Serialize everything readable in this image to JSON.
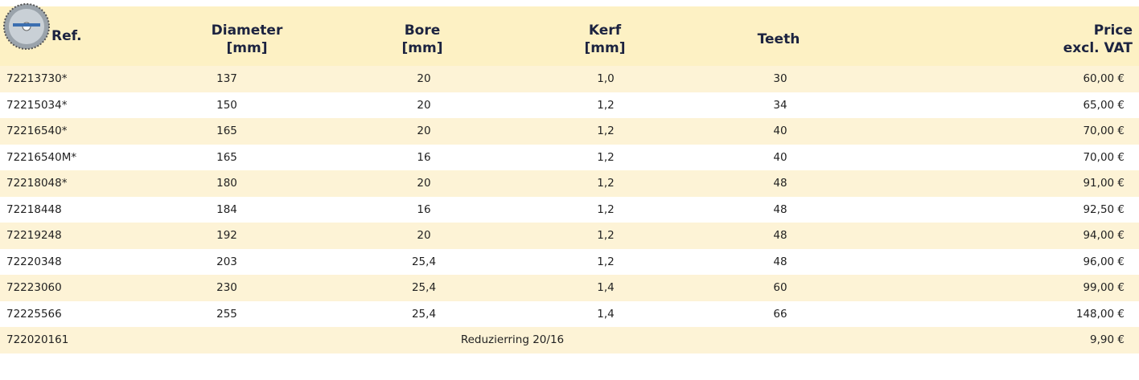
{
  "table": {
    "columns": [
      [
        "Ref."
      ],
      [
        "Diameter",
        "[mm]"
      ],
      [
        "Bore",
        "[mm]"
      ],
      [
        "Kerf",
        "[mm]"
      ],
      [
        "Teeth"
      ],
      [
        "Price",
        "excl. VAT"
      ]
    ],
    "rows": [
      [
        "72213730*",
        "137",
        "20",
        "1,0",
        "30",
        "60,00 €"
      ],
      [
        "72215034*",
        "150",
        "20",
        "1,2",
        "34",
        "65,00 €"
      ],
      [
        "72216540*",
        "165",
        "20",
        "1,2",
        "40",
        "70,00 €"
      ],
      [
        "72216540M*",
        "165",
        "16",
        "1,2",
        "40",
        "70,00 €"
      ],
      [
        "72218048*",
        "180",
        "20",
        "1,2",
        "48",
        "91,00 €"
      ],
      [
        "72218448",
        "184",
        "16",
        "1,2",
        "48",
        "92,50 €"
      ],
      [
        "72219248",
        "192",
        "20",
        "1,2",
        "48",
        "94,00 €"
      ],
      [
        "72220348",
        "203",
        "25,4",
        "1,2",
        "48",
        "96,00 €"
      ],
      [
        "72223060",
        "230",
        "25,4",
        "1,4",
        "60",
        "99,00 €"
      ],
      [
        "72225566",
        "255",
        "25,4",
        "1,4",
        "66",
        "148,00 €"
      ],
      [
        "722020161",
        "Reduzierring 20/16",
        "9,90 €"
      ]
    ]
  }
}
